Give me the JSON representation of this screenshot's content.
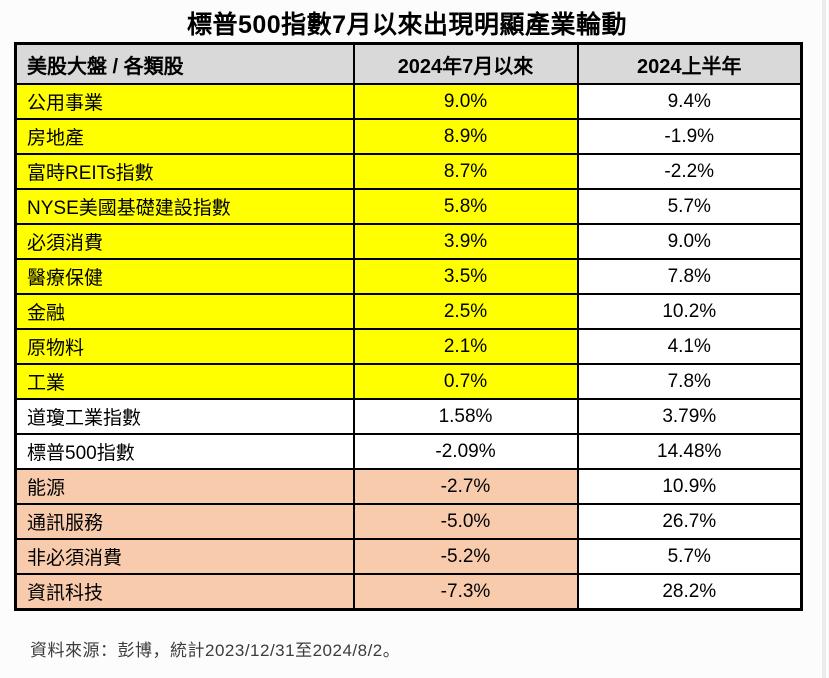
{
  "title": "標普500指數7月以來出現明顯產業輪動",
  "table": {
    "headers": [
      "美股大盤 / 各類股",
      "2024年7月以來",
      "2024上半年"
    ],
    "rows": [
      {
        "label": "公用事業",
        "since_july": "9.0%",
        "first_half": "9.4%",
        "highlight": "yellow"
      },
      {
        "label": "房地產",
        "since_july": "8.9%",
        "first_half": "-1.9%",
        "highlight": "yellow"
      },
      {
        "label": "富時REITs指數",
        "since_july": "8.7%",
        "first_half": "-2.2%",
        "highlight": "yellow"
      },
      {
        "label": "NYSE美國基礎建設指數",
        "since_july": "5.8%",
        "first_half": "5.7%",
        "highlight": "yellow"
      },
      {
        "label": "必須消費",
        "since_july": "3.9%",
        "first_half": "9.0%",
        "highlight": "yellow"
      },
      {
        "label": "醫療保健",
        "since_july": "3.5%",
        "first_half": "7.8%",
        "highlight": "yellow"
      },
      {
        "label": "金融",
        "since_july": "2.5%",
        "first_half": "10.2%",
        "highlight": "yellow"
      },
      {
        "label": "原物料",
        "since_july": "2.1%",
        "first_half": "4.1%",
        "highlight": "yellow"
      },
      {
        "label": "工業",
        "since_july": "0.7%",
        "first_half": "7.8%",
        "highlight": "yellow"
      },
      {
        "label": "道瓊工業指數",
        "since_july": "1.58%",
        "first_half": "3.79%",
        "highlight": "none"
      },
      {
        "label": "標普500指數",
        "since_july": "-2.09%",
        "first_half": "14.48%",
        "highlight": "none"
      },
      {
        "label": "能源",
        "since_july": "-2.7%",
        "first_half": "10.9%",
        "highlight": "peach"
      },
      {
        "label": "通訊服務",
        "since_july": "-5.0%",
        "first_half": "26.7%",
        "highlight": "peach"
      },
      {
        "label": "非必須消費",
        "since_july": "-5.2%",
        "first_half": "5.7%",
        "highlight": "peach"
      },
      {
        "label": "資訊科技",
        "since_july": "-7.3%",
        "first_half": "28.2%",
        "highlight": "peach"
      }
    ]
  },
  "footer": "資料來源：彭博，統計2023/12/31至2024/8/2。",
  "colors": {
    "yellow_highlight": "#FFFF00",
    "peach_highlight": "#F8CBAD",
    "header_gray": "#D9D9D9",
    "border_black": "#000000",
    "white": "#FFFFFF"
  },
  "chart_data": {
    "type": "table",
    "title": "標普500指數7月以來出現明顯產業輪動",
    "columns": [
      "美股大盤 / 各類股",
      "2024年7月以來",
      "2024上半年"
    ],
    "units": "%",
    "rows": [
      {
        "name": "公用事業",
        "since_2024_07": 9.0,
        "h1_2024": 9.4,
        "group": "yellow-outperform"
      },
      {
        "name": "房地產",
        "since_2024_07": 8.9,
        "h1_2024": -1.9,
        "group": "yellow-outperform"
      },
      {
        "name": "富時REITs指數",
        "since_2024_07": 8.7,
        "h1_2024": -2.2,
        "group": "yellow-outperform"
      },
      {
        "name": "NYSE美國基礎建設指數",
        "since_2024_07": 5.8,
        "h1_2024": 5.7,
        "group": "yellow-outperform"
      },
      {
        "name": "必須消費",
        "since_2024_07": 3.9,
        "h1_2024": 9.0,
        "group": "yellow-outperform"
      },
      {
        "name": "醫療保健",
        "since_2024_07": 3.5,
        "h1_2024": 7.8,
        "group": "yellow-outperform"
      },
      {
        "name": "金融",
        "since_2024_07": 2.5,
        "h1_2024": 10.2,
        "group": "yellow-outperform"
      },
      {
        "name": "原物料",
        "since_2024_07": 2.1,
        "h1_2024": 4.1,
        "group": "yellow-outperform"
      },
      {
        "name": "工業",
        "since_2024_07": 0.7,
        "h1_2024": 7.8,
        "group": "yellow-outperform"
      },
      {
        "name": "道瓊工業指數",
        "since_2024_07": 1.58,
        "h1_2024": 3.79,
        "group": "benchmark-white"
      },
      {
        "name": "標普500指數",
        "since_2024_07": -2.09,
        "h1_2024": 14.48,
        "group": "benchmark-white"
      },
      {
        "name": "能源",
        "since_2024_07": -2.7,
        "h1_2024": 10.9,
        "group": "peach-underperform"
      },
      {
        "name": "通訊服務",
        "since_2024_07": -5.0,
        "h1_2024": 26.7,
        "group": "peach-underperform"
      },
      {
        "name": "非必須消費",
        "since_2024_07": -5.2,
        "h1_2024": 5.7,
        "group": "peach-underperform"
      },
      {
        "name": "資訊科技",
        "since_2024_07": -7.3,
        "h1_2024": 28.2,
        "group": "peach-underperform"
      }
    ],
    "source_note": "資料來源：彭博，統計2023/12/31至2024/8/2。"
  }
}
